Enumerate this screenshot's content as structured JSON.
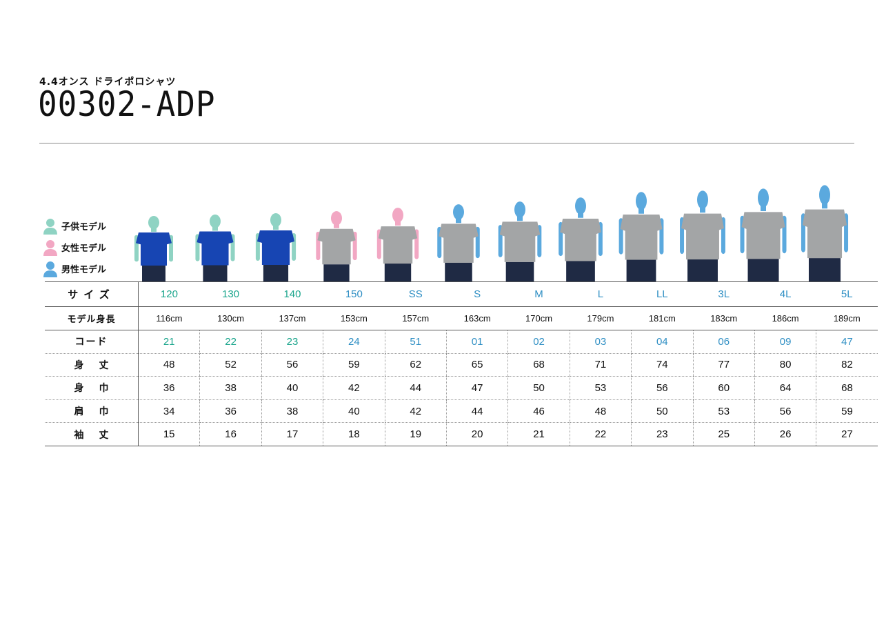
{
  "header": {
    "subtitle": "4.4オンス ドライポロシャツ",
    "title": "00302-ADP"
  },
  "legend": [
    {
      "label": "子供モデル",
      "color": "#8fd3c3",
      "icon": "person-icon"
    },
    {
      "label": "女性モデル",
      "color": "#f2a7c3",
      "icon": "person-icon"
    },
    {
      "label": "男性モデル",
      "color": "#5ba9de",
      "icon": "person-icon"
    }
  ],
  "colors": {
    "kid": "#8fd3c3",
    "woman": "#f2a7c3",
    "man": "#5ba9de",
    "shirt_blue": "#1745b3",
    "shirt_gray": "#a3a5a6",
    "pants": "#1f2a44",
    "kid_text": "#1aa58c",
    "adult_text": "#2f8fc4"
  },
  "table": {
    "labels": {
      "size": "サイズ",
      "height": "モデル身長",
      "code": "コード",
      "length": "身丈",
      "width": "身巾",
      "shoulder": "肩巾",
      "sleeve": "袖丈"
    },
    "columns": [
      {
        "size": "120",
        "model_height": "116cm",
        "code": "21",
        "length": "48",
        "width": "36",
        "shoulder": "34",
        "sleeve": "15",
        "model": "kid",
        "shirt": "blue"
      },
      {
        "size": "130",
        "model_height": "130cm",
        "code": "22",
        "length": "52",
        "width": "38",
        "shoulder": "36",
        "sleeve": "16",
        "model": "kid",
        "shirt": "blue"
      },
      {
        "size": "140",
        "model_height": "137cm",
        "code": "23",
        "length": "56",
        "width": "40",
        "shoulder": "38",
        "sleeve": "17",
        "model": "kid",
        "shirt": "blue"
      },
      {
        "size": "150",
        "model_height": "153cm",
        "code": "24",
        "length": "59",
        "width": "42",
        "shoulder": "40",
        "sleeve": "18",
        "model": "woman",
        "shirt": "gray"
      },
      {
        "size": "SS",
        "model_height": "157cm",
        "code": "51",
        "length": "62",
        "width": "44",
        "shoulder": "42",
        "sleeve": "19",
        "model": "woman",
        "shirt": "gray"
      },
      {
        "size": "S",
        "model_height": "163cm",
        "code": "01",
        "length": "65",
        "width": "47",
        "shoulder": "44",
        "sleeve": "20",
        "model": "man",
        "shirt": "gray"
      },
      {
        "size": "M",
        "model_height": "170cm",
        "code": "02",
        "length": "68",
        "width": "50",
        "shoulder": "46",
        "sleeve": "21",
        "model": "man",
        "shirt": "gray"
      },
      {
        "size": "L",
        "model_height": "179cm",
        "code": "03",
        "length": "71",
        "width": "53",
        "shoulder": "48",
        "sleeve": "22",
        "model": "man",
        "shirt": "gray"
      },
      {
        "size": "LL",
        "model_height": "181cm",
        "code": "04",
        "length": "74",
        "width": "56",
        "shoulder": "50",
        "sleeve": "23",
        "model": "man",
        "shirt": "gray"
      },
      {
        "size": "3L",
        "model_height": "183cm",
        "code": "06",
        "length": "77",
        "width": "60",
        "shoulder": "53",
        "sleeve": "25",
        "model": "man",
        "shirt": "gray"
      },
      {
        "size": "4L",
        "model_height": "186cm",
        "code": "09",
        "length": "80",
        "width": "64",
        "shoulder": "56",
        "sleeve": "26",
        "model": "man",
        "shirt": "gray"
      },
      {
        "size": "5L",
        "model_height": "189cm",
        "code": "47",
        "length": "82",
        "width": "68",
        "shoulder": "59",
        "sleeve": "27",
        "model": "man",
        "shirt": "gray"
      }
    ]
  }
}
